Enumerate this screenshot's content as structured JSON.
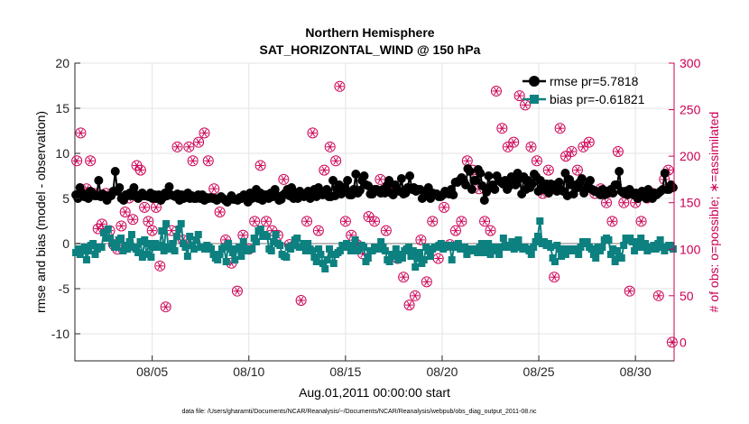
{
  "chart_data": {
    "type": "line",
    "title": "Northern Hemisphere",
    "subtitle": "SAT_HORIZONTAL_WIND @ 150 hPa",
    "xlabel": "Aug.01,2011 00:00:00 start",
    "ylabel_left": "rmse and bias (model - observation)",
    "ylabel_right": "# of obs: o=possible; ∗=assimilated",
    "footer": "data file: /Users/gharamti/Documents/NCAR/Reanalysis/~/Documents/NCAR/Reanalysis/webpub/obs_diag_output_2011-08.nc",
    "x_range": [
      1,
      32
    ],
    "y_left_range": [
      -13,
      20
    ],
    "y_right_range": [
      -20,
      300
    ],
    "x_ticks": [
      5,
      10,
      15,
      20,
      25,
      30
    ],
    "x_tick_labels": [
      "08/05",
      "08/10",
      "08/15",
      "08/20",
      "08/25",
      "08/30"
    ],
    "y_left_ticks": [
      -10,
      -5,
      0,
      5,
      10,
      15,
      20
    ],
    "y_left_tick_labels": [
      "-10",
      "-5",
      "0",
      "5",
      "10",
      "15",
      "20"
    ],
    "y_right_ticks": [
      0,
      50,
      100,
      150,
      200,
      250,
      300
    ],
    "y_right_tick_labels": [
      "0",
      "50",
      "100",
      "150",
      "200",
      "250",
      "300"
    ],
    "zero_line": 0,
    "legend_position": "top-right",
    "colors": {
      "rmse": "#000000",
      "bias": "#0d8080",
      "obs": "#cc0055",
      "zero": "#bbbbbb"
    },
    "series": [
      {
        "name": "rmse pr=5.7818",
        "axis": "left",
        "marker": "circle",
        "values": [
          5.4,
          5.0,
          6.2,
          5.6,
          5.2,
          5.4,
          5.0,
          5.8,
          5.6,
          5.3,
          5.3,
          7.0,
          5.2,
          5.5,
          5.2,
          4.8,
          5.3,
          5.3,
          5.8,
          8.0,
          5.8,
          6.2,
          5.0,
          4.8,
          5.4,
          5.3,
          5.6,
          5.3,
          6.2,
          5.4,
          5.0,
          5.2,
          5.6,
          5.3,
          5.3,
          5.2,
          5.6,
          5.0,
          5.4,
          5.0,
          5.4,
          4.8,
          5.1,
          5.6,
          5.3,
          6.3,
          5.4,
          5.3,
          5.2,
          5.5,
          4.8,
          5.4,
          5.0,
          5.4,
          5.6,
          5.0,
          5.3,
          5.0,
          5.0,
          5.4,
          5.0,
          5.4,
          4.8,
          5.1,
          5.0,
          5.1,
          5.0,
          5.0,
          4.8,
          5.0,
          5.2,
          5.0,
          4.8,
          4.6,
          4.9,
          5.3,
          4.9,
          4.9,
          4.8,
          5.1,
          5.0,
          5.4,
          5.2,
          4.6,
          5.6,
          5.0,
          5.4,
          6.0,
          5.0,
          5.6,
          4.8,
          5.4,
          5.4,
          5.0,
          5.6,
          5.2,
          6.0,
          5.3,
          4.8,
          4.9,
          5.4,
          5.6,
          6.0,
          5.3,
          6.2,
          5.0,
          5.6,
          5.0,
          5.8,
          5.4,
          5.2,
          5.5,
          5.8,
          5.0,
          5.4,
          6.0,
          5.2,
          6.2,
          5.6,
          5.4,
          5.5,
          6.0,
          5.2,
          5.2,
          7.0,
          5.3,
          6.0,
          6.5,
          5.5,
          6.2,
          6.0,
          7.0,
          5.4,
          5.4,
          6.0,
          7.7,
          5.6,
          5.9,
          7.0,
          7.5,
          6.5,
          6.4,
          5.5,
          5.5,
          6.0,
          6.0,
          5.8,
          5.6,
          6.0,
          5.6,
          6.4,
          7.0,
          5.6,
          5.4,
          6.5,
          6.0,
          5.8,
          7.2,
          5.5,
          5.6,
          6.2,
          7.5,
          6.0,
          6.2,
          5.8,
          6.0,
          6.0,
          5.0,
          5.6,
          5.6,
          6.2,
          5.0,
          5.6,
          5.5,
          5.5,
          5.2,
          5.2,
          5.4,
          5.8,
          5.6,
          5.5,
          6.0,
          5.4,
          6.8,
          6.8,
          7.0,
          7.3,
          7.0,
          6.5,
          8.3,
          8.0,
          6.0,
          7.0,
          7.0,
          8.2,
          7.8,
          6.4,
          4.8,
          5.7,
          7.5,
          6.2,
          6.5,
          6.0,
          7.5,
          7.0,
          6.8,
          6.6,
          7.0,
          6.0,
          6.4,
          7.4,
          7.0,
          6.5,
          7.8,
          7.2,
          5.5,
          7.4,
          6.0,
          7.0,
          6.2,
          6.6,
          7.7,
          7.4,
          5.8,
          7.0,
          6.2,
          6.0,
          6.6,
          5.6,
          6.6,
          6.0,
          6.5,
          5.8,
          6.8,
          6.0,
          5.8,
          7.8,
          5.3,
          7.1,
          6.5,
          5.5,
          6.5,
          6.2,
          6.8,
          7.2,
          5.6,
          6.0,
          6.5,
          7.0,
          6.0,
          5.8,
          5.8,
          5.6,
          5.4,
          6.0,
          5.4,
          5.8,
          5.6,
          6.0,
          5.6,
          6.5,
          6.5,
          8.0,
          5.8,
          5.6,
          5.8,
          5.4,
          6.0,
          5.6,
          5.4,
          5.6,
          5.0,
          5.2,
          5.8,
          5.6,
          5.0,
          6.0,
          5.4,
          5.0,
          5.6,
          5.4,
          5.6,
          5.8,
          6.0,
          7.8,
          6.0,
          6.0,
          6.5,
          6.2
        ]
      },
      {
        "name": "bias pr=-0.61821",
        "axis": "left",
        "marker": "square",
        "values": [
          -1.0,
          -0.6,
          -1.2,
          -0.8,
          -0.4,
          -1.8,
          -0.8,
          -0.2,
          0.0,
          -1.2,
          -0.6,
          -0.4,
          -0.4,
          1.2,
          0.6,
          1.6,
          0.6,
          0.0,
          -0.4,
          -0.4,
          0.4,
          0.6,
          -0.8,
          -0.2,
          -0.6,
          0.2,
          1.0,
          -0.4,
          -0.6,
          -1.0,
          0.2,
          -1.5,
          0.4,
          -1.2,
          0.0,
          -1.5,
          -0.4,
          0.0,
          -0.4,
          -0.2,
          1.4,
          -0.8,
          2.2,
          -0.4,
          -0.6,
          0.0,
          -0.8,
          0.8,
          1.6,
          2.2,
          0.0,
          -0.4,
          -1.4,
          0.8,
          -0.2,
          -0.6,
          0.4,
          1.0,
          -0.4,
          -0.4,
          -0.6,
          -0.2,
          -0.4,
          -0.6,
          -1.2,
          -1.6,
          -1.8,
          -1.2,
          -0.6,
          -0.4,
          -2.0,
          0.0,
          -0.6,
          -1.0,
          -1.8,
          -0.6,
          -0.4,
          -1.4,
          0.2,
          -0.6,
          -0.8,
          -0.6,
          -0.6,
          0.6,
          0.2,
          1.4,
          1.6,
          0.8,
          1.0,
          0.8,
          -0.6,
          -0.8,
          0.2,
          1.0,
          0.0,
          -0.2,
          -1.2,
          -1.4,
          -1.5,
          -0.4,
          -0.6,
          -0.2,
          0.4,
          0.6,
          -0.4,
          -0.4,
          0.0,
          -0.8,
          0.0,
          -0.6,
          -0.8,
          -1.5,
          -2.0,
          -0.6,
          -1.2,
          -2.2,
          -2.8,
          -1.8,
          -0.6,
          -1.2,
          -2.2,
          -1.2,
          -1.0,
          -0.8,
          -0.2,
          -0.4,
          0.0,
          -0.2,
          -0.8,
          -0.4,
          0.4,
          -0.8,
          -0.6,
          -0.2,
          -0.4,
          -2.0,
          -1.6,
          -0.8,
          -0.8,
          -0.4,
          -0.6,
          -0.6,
          0.2,
          -0.4,
          -0.8,
          -1.8,
          -2.0,
          -1.2,
          -1.4,
          -0.6,
          -1.8,
          -1.2,
          -1.6,
          -0.8,
          -0.6,
          -0.4,
          -1.4,
          -0.8,
          -2.6,
          -1.6,
          -1.0,
          -2.2,
          -1.8,
          -0.4,
          -0.8,
          -1.4,
          -0.6,
          -0.4,
          -0.4,
          -0.2,
          0.0,
          -0.6,
          -0.4,
          -0.2,
          -0.2,
          -1.8,
          -0.4,
          -0.2,
          0.0,
          -0.6,
          -0.6,
          -0.4,
          -1.2,
          -0.6,
          -0.6,
          -0.8,
          -0.6,
          -1.0,
          -0.4,
          0.0,
          -1.0,
          -0.6,
          0.0,
          -1.2,
          -0.8,
          -0.4,
          -0.4,
          -1.2,
          -0.4,
          0.6,
          -0.2,
          -0.4,
          -0.4,
          0.2,
          -0.6,
          -0.2,
          0.4,
          -0.4,
          -0.6,
          -0.4,
          -0.6,
          -0.8,
          -1.2,
          -0.4,
          0.2,
          0.8,
          2.5,
          0.0,
          0.2,
          -0.2,
          0.0,
          -0.4,
          -1.6,
          -2.0,
          -0.2,
          -0.6,
          -1.4,
          -0.6,
          -1.2,
          -0.6,
          -0.8,
          -0.8,
          -0.6,
          -0.8,
          -1.2,
          -0.4,
          0.2,
          0.0,
          0.2,
          -0.4,
          -0.6,
          -1.2,
          -1.6,
          -0.4,
          -0.8,
          -0.4,
          0.4,
          0.6,
          0.4,
          -1.2,
          -0.6,
          -2.0,
          -0.8,
          -1.4,
          -1.6,
          -0.2,
          0.6,
          0.4,
          0.6,
          0.2,
          -0.8,
          -0.4,
          0.2,
          0.6,
          -0.4,
          0.0,
          -0.8,
          -0.6,
          -0.4,
          -0.2,
          -0.6,
          0.0,
          0.4,
          -0.4,
          -0.8,
          -0.4,
          -0.2,
          -0.2,
          -0.6
        ]
      },
      {
        "name": "# of obs possible / assimilated",
        "axis": "right",
        "marker": "circle-asterisk",
        "points": [
          [
            1.1,
            195
          ],
          [
            1.3,
            225
          ],
          [
            1.6,
            165
          ],
          [
            1.8,
            195
          ],
          [
            2.0,
            160
          ],
          [
            2.2,
            122
          ],
          [
            2.4,
            127
          ],
          [
            2.6,
            160
          ],
          [
            2.8,
            120
          ],
          [
            3.0,
            105
          ],
          [
            3.2,
            100
          ],
          [
            3.4,
            125
          ],
          [
            3.6,
            140
          ],
          [
            3.8,
            155
          ],
          [
            4.0,
            132
          ],
          [
            4.2,
            190
          ],
          [
            4.4,
            185
          ],
          [
            4.6,
            145
          ],
          [
            4.8,
            130
          ],
          [
            5.0,
            120
          ],
          [
            5.2,
            145
          ],
          [
            5.4,
            82
          ],
          [
            5.7,
            38
          ],
          [
            6.0,
            120
          ],
          [
            6.3,
            210
          ],
          [
            6.6,
            110
          ],
          [
            6.9,
            210
          ],
          [
            7.1,
            195
          ],
          [
            7.4,
            215
          ],
          [
            7.7,
            225
          ],
          [
            7.9,
            195
          ],
          [
            8.2,
            165
          ],
          [
            8.5,
            140
          ],
          [
            8.8,
            110
          ],
          [
            9.1,
            85
          ],
          [
            9.4,
            55
          ],
          [
            9.7,
            115
          ],
          [
            10.0,
            100
          ],
          [
            10.3,
            130
          ],
          [
            10.6,
            190
          ],
          [
            10.9,
            130
          ],
          [
            11.2,
            120
          ],
          [
            11.5,
            115
          ],
          [
            11.8,
            175
          ],
          [
            12.1,
            105
          ],
          [
            12.4,
            160
          ],
          [
            12.7,
            45
          ],
          [
            13.0,
            130
          ],
          [
            13.3,
            225
          ],
          [
            13.6,
            120
          ],
          [
            13.9,
            185
          ],
          [
            14.2,
            210
          ],
          [
            14.5,
            195
          ],
          [
            14.7,
            275
          ],
          [
            15.0,
            130
          ],
          [
            15.3,
            115
          ],
          [
            15.6,
            105
          ],
          [
            15.9,
            95
          ],
          [
            16.2,
            135
          ],
          [
            16.5,
            130
          ],
          [
            16.8,
            175
          ],
          [
            17.1,
            120
          ],
          [
            17.4,
            165
          ],
          [
            17.7,
            90
          ],
          [
            18.0,
            70
          ],
          [
            18.3,
            40
          ],
          [
            18.6,
            50
          ],
          [
            18.9,
            110
          ],
          [
            19.2,
            65
          ],
          [
            19.5,
            130
          ],
          [
            19.8,
            90
          ],
          [
            20.1,
            145
          ],
          [
            20.4,
            105
          ],
          [
            20.7,
            120
          ],
          [
            21.0,
            130
          ],
          [
            21.3,
            195
          ],
          [
            21.6,
            185
          ],
          [
            21.9,
            165
          ],
          [
            22.2,
            130
          ],
          [
            22.5,
            120
          ],
          [
            22.8,
            270
          ],
          [
            23.1,
            230
          ],
          [
            23.4,
            210
          ],
          [
            23.7,
            215
          ],
          [
            24.0,
            265
          ],
          [
            24.3,
            255
          ],
          [
            24.6,
            210
          ],
          [
            24.9,
            195
          ],
          [
            25.2,
            160
          ],
          [
            25.5,
            185
          ],
          [
            25.8,
            70
          ],
          [
            26.1,
            230
          ],
          [
            26.4,
            200
          ],
          [
            26.7,
            205
          ],
          [
            27.0,
            185
          ],
          [
            27.3,
            210
          ],
          [
            27.6,
            215
          ],
          [
            27.9,
            160
          ],
          [
            28.2,
            165
          ],
          [
            28.5,
            150
          ],
          [
            28.8,
            130
          ],
          [
            29.1,
            205
          ],
          [
            29.4,
            150
          ],
          [
            29.7,
            55
          ],
          [
            30.0,
            150
          ],
          [
            30.3,
            130
          ],
          [
            30.6,
            155
          ],
          [
            30.9,
            160
          ],
          [
            31.2,
            50
          ],
          [
            31.5,
            175
          ],
          [
            31.7,
            185
          ],
          [
            31.9,
            0
          ]
        ]
      }
    ]
  }
}
